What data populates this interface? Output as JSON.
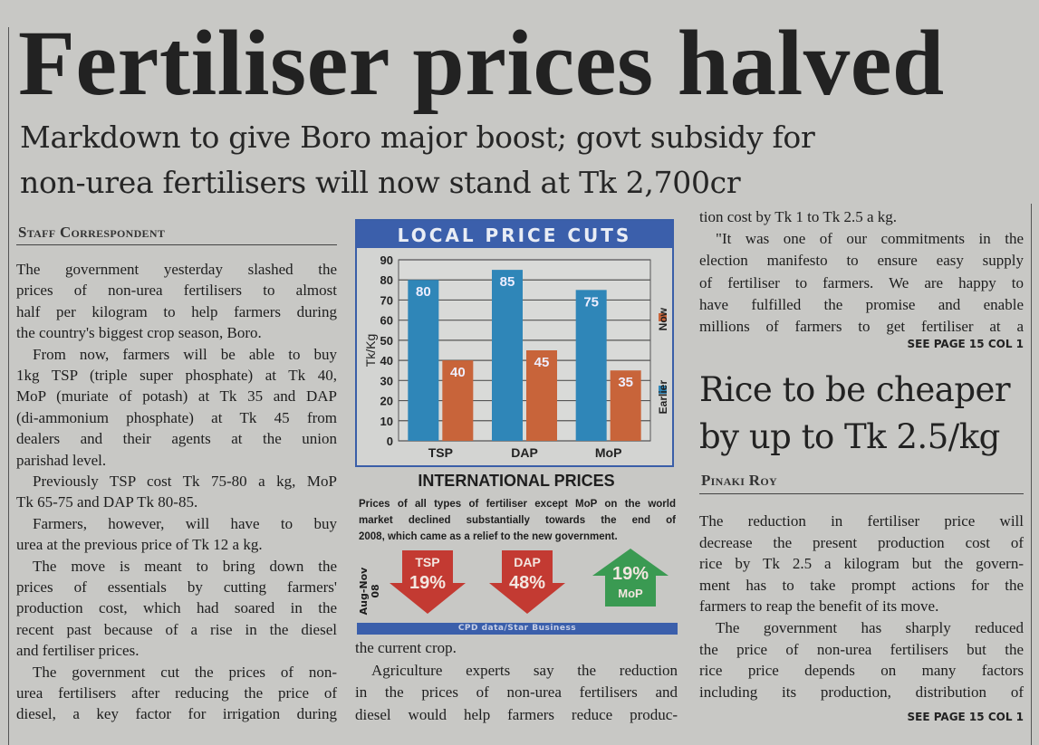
{
  "headline": "Fertiliser prices halved",
  "subheadline": [
    "Markdown to give Boro major boost; govt subsidy for",
    "non-urea fertilisers will now stand at Tk 2,700cr"
  ],
  "main_story": {
    "byline": "Staff Correspondent",
    "left_column": [
      {
        "indent": false,
        "open": false,
        "lines": [
          "The government yesterday slashed the",
          "prices of non-urea fertilisers to almost",
          "half per kilogram to help farmers during",
          "the country's biggest crop season, Boro."
        ]
      },
      {
        "indent": true,
        "open": false,
        "lines": [
          "From now, farmers will be able to buy",
          "1kg TSP (triple super phosphate) at Tk 40,",
          "MoP (muriate of potash) at Tk 35 and DAP",
          "(di-ammonium phosphate) at Tk 45 from",
          "dealers and their agents at the union",
          "parishad level."
        ]
      },
      {
        "indent": true,
        "open": false,
        "lines": [
          "Previously TSP cost Tk 75-80 a kg, MoP",
          "Tk 65-75 and DAP Tk 80-85."
        ]
      },
      {
        "indent": true,
        "open": false,
        "lines": [
          "Farmers, however, will have to buy",
          "urea at the previous price of Tk 12 a kg."
        ]
      },
      {
        "indent": true,
        "open": false,
        "lines": [
          "The move is meant to bring down the",
          "prices of essentials by cutting farmers'",
          "production cost, which had soared in the",
          "recent past because of a rise in the diesel",
          "and fertiliser prices."
        ]
      },
      {
        "indent": true,
        "open": true,
        "lines": [
          "The government cut the prices of non-",
          "urea fertilisers after reducing the price of",
          "diesel, a key factor for irrigation during"
        ]
      }
    ],
    "middle_column": [
      {
        "indent": false,
        "open": false,
        "lines": [
          "the current crop."
        ]
      },
      {
        "indent": true,
        "open": true,
        "lines": [
          "Agriculture experts say the reduction",
          "in the prices of non-urea fertilisers and",
          "diesel would help farmers reduce produc-"
        ]
      }
    ],
    "right_column": [
      {
        "indent": false,
        "open": false,
        "lines": [
          "tion cost by Tk 1 to Tk 2.5 a kg."
        ]
      },
      {
        "indent": true,
        "open": true,
        "lines": [
          "\"It was one of our commitments in the",
          "election manifesto to ensure easy supply",
          "of fertiliser to farmers. We are happy to",
          "have fulfilled the promise and enable",
          "millions of farmers to get fertiliser at a"
        ]
      }
    ],
    "jump": "SEE PAGE 15 COL 1"
  },
  "second_story": {
    "headline": [
      "Rice to be cheaper",
      "by up to Tk 2.5/kg"
    ],
    "byline": "Pinaki Roy",
    "column": [
      {
        "indent": false,
        "open": false,
        "lines": [
          "The reduction in fertiliser price will",
          "decrease the present production cost of",
          "rice by Tk 2.5 a kilogram but the govern-",
          "ment has to take prompt actions for the",
          "farmers to reap the benefit of its move."
        ]
      },
      {
        "indent": true,
        "open": true,
        "lines": [
          "The government has sharply reduced",
          "the price of non-urea fertilisers but the",
          "rice price depends on many factors",
          "including its production, distribution of"
        ]
      }
    ],
    "jump": "SEE PAGE 15 COL 1"
  },
  "chart_data": {
    "type": "bar",
    "title": "LOCAL PRICE CUTS",
    "categories": [
      "TSP",
      "DAP",
      "MoP"
    ],
    "series": [
      {
        "name": "Earlier",
        "values": [
          80,
          85,
          75
        ],
        "color": "#2f86b8"
      },
      {
        "name": "Now",
        "values": [
          40,
          45,
          35
        ],
        "color": "#c8643a"
      }
    ],
    "ylabel": "Tk/Kg",
    "xlabel": "",
    "ylim": [
      0,
      90
    ],
    "yticks": [
      0,
      10,
      20,
      30,
      40,
      50,
      60,
      70,
      80,
      90
    ],
    "grid": true,
    "legend": "right"
  },
  "international": {
    "title": "INTERNATIONAL PRICES",
    "description": [
      "Prices of all types of fertiliser except MoP on the world",
      "market declined substantially towards the end of",
      "2008, which came as a relief to the new government."
    ],
    "period": "Aug-Nov 08",
    "changes": [
      {
        "name": "TSP",
        "value": "19%",
        "direction": "down",
        "color": "#c33a32"
      },
      {
        "name": "DAP",
        "value": "48%",
        "direction": "down",
        "color": "#c33a32"
      },
      {
        "name": "MoP",
        "value": "19%",
        "direction": "up",
        "color": "#3a9a52"
      }
    ],
    "source": "CPD data/Star Business"
  }
}
